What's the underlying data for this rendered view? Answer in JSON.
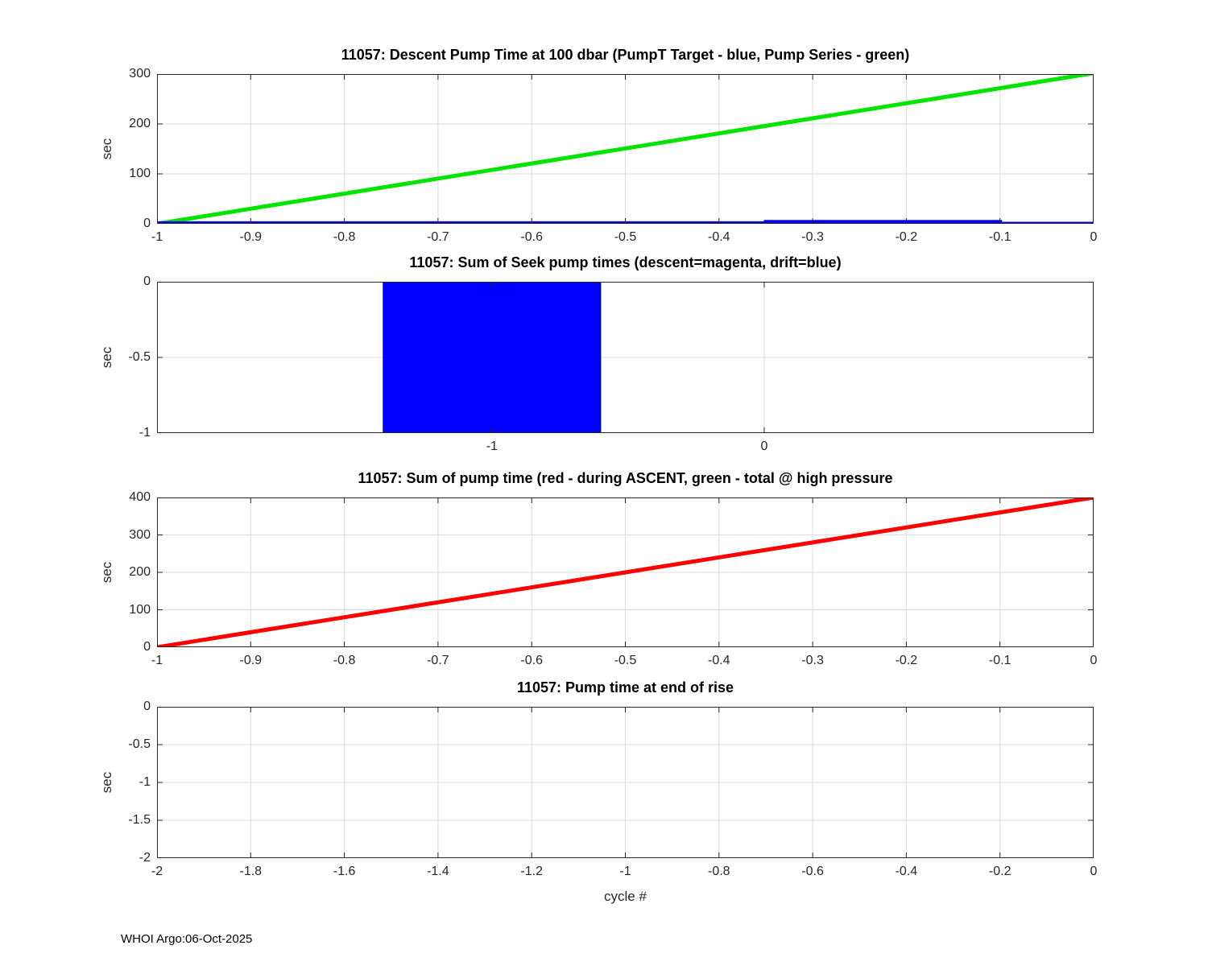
{
  "figure": {
    "footer_credit": "WHOI Argo:06-Oct-2025"
  },
  "style": {
    "background": "#ffffff",
    "axis_color": "#262626",
    "grid_color": "#dcdcdc",
    "line_width": 5
  },
  "chart_data": [
    {
      "id": "descent-pump-time-100dbar",
      "type": "line",
      "title": "11057: Descent Pump Time at 100 dbar (PumpT Target - blue, Pump Series - green)",
      "ylabel": "sec",
      "xlim": [
        -1,
        0
      ],
      "ylim": [
        0,
        300
      ],
      "xticks": [
        -1,
        -0.9,
        -0.8,
        -0.7,
        -0.6,
        -0.5,
        -0.4,
        -0.3,
        -0.2,
        -0.1,
        0
      ],
      "yticks": [
        0,
        100,
        200,
        300
      ],
      "grid": true,
      "series": [
        {
          "name": "Pump Series",
          "color": "#00e400",
          "points": [
            [
              -1,
              0
            ],
            [
              0,
              302
            ]
          ]
        },
        {
          "name": "PumpT Target",
          "color": "#0000ff",
          "points": [
            [
              -1,
              1
            ],
            [
              -0.35,
              1
            ],
            [
              -0.35,
              3.5
            ],
            [
              -0.1,
              3.5
            ],
            [
              -0.1,
              0
            ],
            [
              0,
              0
            ]
          ]
        }
      ]
    },
    {
      "id": "sum-seek-pump-times",
      "type": "bar",
      "title": "11057: Sum of Seek pump times (descent=magenta, drift=blue)",
      "ylabel": "sec",
      "xlim": [
        -2.23,
        1.21
      ],
      "ylim": [
        -1,
        0
      ],
      "xticks": [
        -1,
        0
      ],
      "yticks": [
        -1,
        -0.5,
        0
      ],
      "grid": true,
      "bars": [
        {
          "name": "drift",
          "x": -1,
          "bar_width": 0.8,
          "value": -1,
          "color": "#0000ff"
        }
      ]
    },
    {
      "id": "sum-pump-time",
      "type": "line",
      "title": "11057: Sum of pump time (red - during ASCENT, green - total @ high pressure",
      "ylabel": "sec",
      "xlim": [
        -1,
        0
      ],
      "ylim": [
        0,
        400
      ],
      "xticks": [
        -1,
        -0.9,
        -0.8,
        -0.7,
        -0.6,
        -0.5,
        -0.4,
        -0.3,
        -0.2,
        -0.1,
        0
      ],
      "yticks": [
        0,
        100,
        200,
        300,
        400
      ],
      "grid": true,
      "series": [
        {
          "name": "during ASCENT",
          "color": "#ff0000",
          "points": [
            [
              -1,
              0
            ],
            [
              0,
              400
            ]
          ]
        }
      ]
    },
    {
      "id": "pump-time-end-of-rise",
      "type": "line",
      "title": "11057: Pump time at end of rise",
      "ylabel": "sec",
      "xlabel": "cycle #",
      "xlim": [
        -2,
        0
      ],
      "ylim": [
        -2,
        0
      ],
      "xticks": [
        -2,
        -1.8,
        -1.6,
        -1.4,
        -1.2,
        -1,
        -0.8,
        -0.6,
        -0.4,
        -0.2,
        0
      ],
      "yticks": [
        -2,
        -1.5,
        -1,
        -0.5,
        0
      ],
      "grid": true,
      "series": []
    }
  ]
}
